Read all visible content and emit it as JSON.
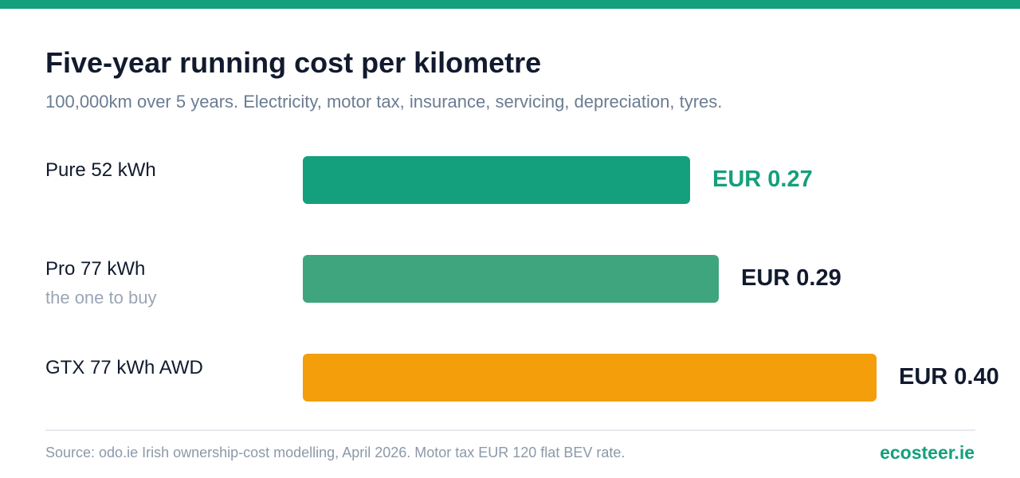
{
  "colors": {
    "accent": "#14a07c",
    "bar_mid": "#3ea57f",
    "bar_high": "#f49e0b",
    "value_dark": "#111a2e"
  },
  "title": "Five-year running cost per kilometre",
  "subtitle": "100,000km over 5 years. Electricity, motor tax, insurance, servicing, depreciation, tyres.",
  "chart_data": {
    "type": "bar",
    "orientation": "horizontal",
    "categories": [
      "Pure 52 kWh",
      "Pro 77 kWh",
      "GTX 77 kWh AWD"
    ],
    "category_notes": [
      "",
      "the one to buy",
      ""
    ],
    "values": [
      0.27,
      0.29,
      0.4
    ],
    "value_labels": [
      "EUR 0.27",
      "EUR 0.29",
      "EUR 0.40"
    ],
    "bar_colors": [
      "#14a07c",
      "#3ea57f",
      "#f49e0b"
    ],
    "value_label_colors": [
      "#14a07c",
      "#111a2e",
      "#111a2e"
    ],
    "grid": false,
    "legend": "none"
  },
  "footer": {
    "source": "Source: odo.ie Irish ownership-cost modelling, April 2026. Motor tax EUR 120 flat BEV rate.",
    "brand": "ecosteer.ie"
  }
}
